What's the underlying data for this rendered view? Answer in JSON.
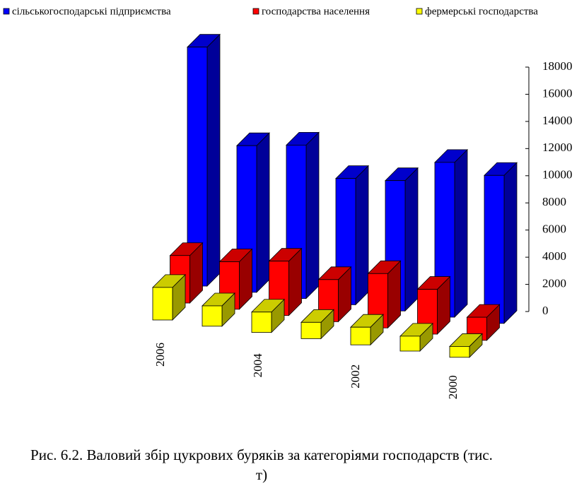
{
  "chart_data": {
    "type": "bar3d",
    "title": "Рис. 6.2. Валовий збір цукрових буряків за категоріями господарств (тис. т)",
    "categories": [
      "2006",
      null,
      "2004",
      null,
      "2002",
      null,
      "2000"
    ],
    "series": [
      {
        "name": "сільськогосподарські підприємства",
        "color": "#0000ff",
        "values": [
          17600,
          10800,
          11300,
          9300,
          9600,
          11400,
          10900
        ]
      },
      {
        "name": "господарства населення",
        "color": "#ff0000",
        "values": [
          3500,
          3500,
          4000,
          3100,
          4000,
          3300,
          1700
        ]
      },
      {
        "name": "фермерські господарства",
        "color": "#ffff00",
        "values": [
          2400,
          1500,
          1500,
          1200,
          1300,
          1100,
          800
        ]
      }
    ],
    "ylim": [
      0,
      18000
    ],
    "yticks": [
      0,
      2000,
      4000,
      6000,
      8000,
      10000,
      12000,
      14000,
      16000,
      18000
    ],
    "legend": "top"
  }
}
